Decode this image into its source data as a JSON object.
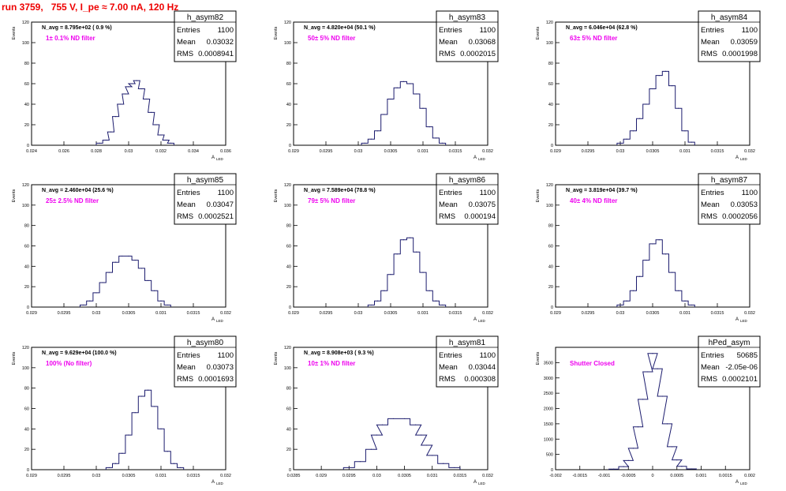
{
  "title": "run 3759,   755 V, I_pe ≈ 7.00 nA, 120 Hz",
  "x_axis_label": "A",
  "x_axis_label_sub": "LED",
  "y_axis_label": "Events",
  "stats_labels": [
    "Entries",
    "Mean",
    "RMS"
  ],
  "colors": {
    "title": "#ee0000",
    "histogram": "#1c1c6e",
    "annotation": "#ee00ee",
    "axis": "#000000"
  },
  "chart_data": [
    {
      "type": "histogram",
      "name": "h_asym82",
      "navg": "N_avg = 8.795e+02 ( 0.9 %)",
      "filter": "1± 0.1% ND filter",
      "entries": "1100",
      "mean": "0.03032",
      "rms": "0.0008941",
      "xlim": [
        0.024,
        0.036
      ],
      "ylim": [
        0,
        120
      ],
      "xticks": [
        "0.024",
        "0.026",
        "0.028",
        "0.03",
        "0.032",
        "0.034",
        "0.036"
      ],
      "yticks": [
        "0",
        "20",
        "40",
        "60",
        "80",
        "100",
        "120"
      ],
      "x": [
        0.0282,
        0.0286,
        0.0289,
        0.0292,
        0.0295,
        0.0298,
        0.03,
        0.0302,
        0.0305,
        0.0308,
        0.0311,
        0.0314,
        0.0317,
        0.032,
        0.0323,
        0.0326
      ],
      "y": [
        2,
        5,
        13,
        28,
        40,
        50,
        57,
        60,
        63,
        55,
        45,
        32,
        20,
        10,
        5,
        2
      ]
    },
    {
      "type": "histogram",
      "name": "h_asym83",
      "navg": "N_avg = 4.820e+04 (50.1 %)",
      "filter": "50± 5% ND filter",
      "entries": "1100",
      "mean": "0.03068",
      "rms": "0.0002015",
      "xlim": [
        0.029,
        0.032
      ],
      "ylim": [
        0,
        120
      ],
      "xticks": [
        "0.029",
        "0.0295",
        "0.03",
        "0.0305",
        "0.031",
        "0.0315",
        "0.032"
      ],
      "yticks": [
        "0",
        "20",
        "40",
        "60",
        "80",
        "100",
        "120"
      ],
      "x": [
        0.0301,
        0.0302,
        0.0303,
        0.0304,
        0.0305,
        0.0306,
        0.0307,
        0.0308,
        0.0309,
        0.031,
        0.0311,
        0.0312,
        0.0313
      ],
      "y": [
        2,
        6,
        14,
        30,
        45,
        56,
        62,
        60,
        50,
        36,
        18,
        7,
        2
      ]
    },
    {
      "type": "histogram",
      "name": "h_asym84",
      "navg": "N_avg = 6.046e+04 (62.8 %)",
      "filter": "63± 5% ND filter",
      "entries": "1100",
      "mean": "0.03059",
      "rms": "0.0001998",
      "xlim": [
        0.029,
        0.032
      ],
      "ylim": [
        0,
        120
      ],
      "xticks": [
        "0.029",
        "0.0295",
        "0.03",
        "0.0305",
        "0.031",
        "0.0315",
        "0.032"
      ],
      "yticks": [
        "0",
        "20",
        "40",
        "60",
        "80",
        "100",
        "120"
      ],
      "x": [
        0.03,
        0.0301,
        0.0302,
        0.0303,
        0.0304,
        0.0305,
        0.0306,
        0.0307,
        0.0308,
        0.0309,
        0.031,
        0.0311
      ],
      "y": [
        2,
        6,
        14,
        26,
        40,
        55,
        68,
        72,
        58,
        36,
        14,
        3
      ]
    },
    {
      "type": "histogram",
      "name": "h_asym85",
      "navg": "N_avg = 2.460e+04 (25.6 %)",
      "filter": "25± 2.5% ND filter",
      "entries": "1100",
      "mean": "0.03047",
      "rms": "0.0002521",
      "xlim": [
        0.029,
        0.032
      ],
      "ylim": [
        0,
        120
      ],
      "xticks": [
        "0.029",
        "0.0295",
        "0.03",
        "0.0305",
        "0.031",
        "0.0315",
        "0.032"
      ],
      "yticks": [
        "0",
        "20",
        "40",
        "60",
        "80",
        "100",
        "120"
      ],
      "x": [
        0.0298,
        0.0299,
        0.03,
        0.0301,
        0.0302,
        0.0303,
        0.0304,
        0.0305,
        0.0306,
        0.0307,
        0.0308,
        0.0309,
        0.031,
        0.0311
      ],
      "y": [
        2,
        6,
        14,
        24,
        34,
        44,
        50,
        50,
        46,
        38,
        26,
        16,
        6,
        2
      ]
    },
    {
      "type": "histogram",
      "name": "h_asym86",
      "navg": "N_avg = 7.589e+04 (78.8 %)",
      "filter": "79± 5% ND filter",
      "entries": "1100",
      "mean": "0.03075",
      "rms": "0.000194",
      "xlim": [
        0.029,
        0.032
      ],
      "ylim": [
        0,
        120
      ],
      "xticks": [
        "0.029",
        "0.0295",
        "0.03",
        "0.0305",
        "0.031",
        "0.0315",
        "0.032"
      ],
      "yticks": [
        "0",
        "20",
        "40",
        "60",
        "80",
        "100",
        "120"
      ],
      "x": [
        0.0302,
        0.0303,
        0.0304,
        0.0305,
        0.0306,
        0.0307,
        0.0308,
        0.0309,
        0.031,
        0.0311,
        0.0312,
        0.0313
      ],
      "y": [
        2,
        6,
        16,
        32,
        52,
        66,
        68,
        54,
        34,
        16,
        6,
        2
      ]
    },
    {
      "type": "histogram",
      "name": "h_asym87",
      "navg": "N_avg = 3.819e+04 (39.7 %)",
      "filter": "40± 4% ND filter",
      "entries": "1100",
      "mean": "0.03053",
      "rms": "0.0002056",
      "xlim": [
        0.029,
        0.032
      ],
      "ylim": [
        0,
        120
      ],
      "xticks": [
        "0.029",
        "0.0295",
        "0.03",
        "0.0305",
        "0.031",
        "0.0315",
        "0.032"
      ],
      "yticks": [
        "0",
        "20",
        "40",
        "60",
        "80",
        "100",
        "120"
      ],
      "x": [
        0.03,
        0.0301,
        0.0302,
        0.0303,
        0.0304,
        0.0305,
        0.0306,
        0.0307,
        0.0308,
        0.0309,
        0.031,
        0.0311
      ],
      "y": [
        2,
        6,
        16,
        30,
        46,
        62,
        66,
        52,
        34,
        16,
        6,
        2
      ]
    },
    {
      "type": "histogram",
      "name": "h_asym80",
      "navg": "N_avg = 9.629e+04 (100.0 %)",
      "filter": "100% (No filter)",
      "entries": "1100",
      "mean": "0.03073",
      "rms": "0.0001693",
      "xlim": [
        0.029,
        0.032
      ],
      "ylim": [
        0,
        120
      ],
      "xticks": [
        "0.029",
        "0.0295",
        "0.03",
        "0.0305",
        "0.031",
        "0.0315",
        "0.032"
      ],
      "yticks": [
        "0",
        "20",
        "40",
        "60",
        "80",
        "100",
        "120"
      ],
      "x": [
        0.0302,
        0.0303,
        0.0304,
        0.0305,
        0.0306,
        0.0307,
        0.0308,
        0.0309,
        0.031,
        0.0311,
        0.0312,
        0.0313
      ],
      "y": [
        2,
        6,
        16,
        34,
        56,
        72,
        78,
        62,
        40,
        18,
        6,
        2
      ]
    },
    {
      "type": "histogram",
      "name": "h_asym81",
      "navg": "N_avg = 8.908e+03 ( 9.3 %)",
      "filter": "10± 1% ND filter",
      "entries": "1100",
      "mean": "0.03044",
      "rms": "0.000308",
      "xlim": [
        0.0285,
        0.032
      ],
      "ylim": [
        0,
        120
      ],
      "xticks": [
        "0.0285",
        "0.029",
        "0.0295",
        "0.03",
        "0.0305",
        "0.031",
        "0.0315",
        "0.032"
      ],
      "yticks": [
        "0",
        "20",
        "40",
        "60",
        "80",
        "100",
        "120"
      ],
      "x": [
        0.0295,
        0.0297,
        0.0299,
        0.03,
        0.0301,
        0.0303,
        0.0305,
        0.0307,
        0.0308,
        0.0309,
        0.031,
        0.0312,
        0.0314
      ],
      "y": [
        2,
        8,
        20,
        34,
        44,
        50,
        50,
        44,
        34,
        24,
        14,
        6,
        2
      ]
    },
    {
      "type": "histogram",
      "name": "hPed_asym",
      "navg": "",
      "filter": "Shutter Closed",
      "entries": "50685",
      "mean": "-2.05e-06",
      "rms": "0.0002101",
      "xlim": [
        -0.002,
        0.002
      ],
      "ylim": [
        0,
        4000
      ],
      "xticks": [
        "-0.002",
        "-0.0015",
        "-0.001",
        "-0.0005",
        "0",
        "0.0005",
        "0.001",
        "0.0015",
        "0.002"
      ],
      "yticks": [
        "0",
        "500",
        "1000",
        "1500",
        "2000",
        "2500",
        "3000",
        "3500"
      ],
      "x": [
        -0.0008,
        -0.0006,
        -0.0005,
        -0.0004,
        -0.0003,
        -0.0002,
        -0.0001,
        0,
        0.0001,
        0.0002,
        0.0003,
        0.0004,
        0.0005,
        0.0006,
        0.0008
      ],
      "y": [
        20,
        100,
        300,
        700,
        1400,
        2300,
        3200,
        3800,
        3300,
        2400,
        1500,
        750,
        320,
        110,
        25
      ]
    }
  ]
}
